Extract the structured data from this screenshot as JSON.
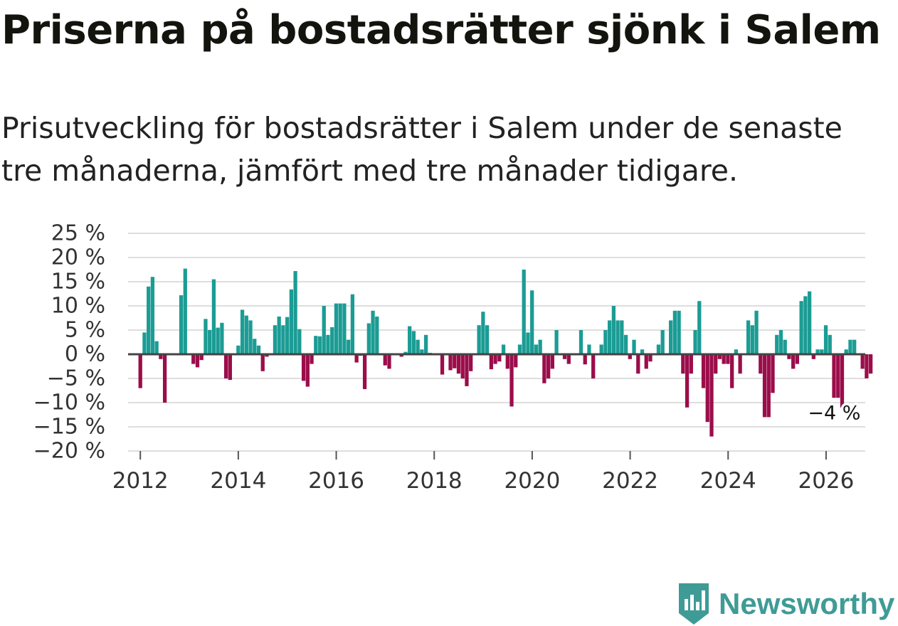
{
  "title": "Priserna på bostadsrätter sjönk i Salem",
  "subtitle": "Prisutveckling för bostadsrätter i Salem under de senaste tre månaderna, jämfört med tre månader tidigare.",
  "brand": {
    "name": "Newsworthy",
    "icon": "newsworthy-logo-icon"
  },
  "colors": {
    "positive": "#1b9c94",
    "negative": "#9b0d4a",
    "grid": "#dedede",
    "zero": "#444444",
    "text": "#333333",
    "brand": "#3f9b96"
  },
  "chart_data": {
    "type": "bar",
    "title": "Priserna på bostadsrätter sjönk i Salem",
    "xlabel": "",
    "ylabel": "",
    "unit": "%",
    "ylim": [
      -20,
      25
    ],
    "yticks": [
      25,
      20,
      15,
      10,
      5,
      0,
      -5,
      -10,
      -15,
      -20
    ],
    "ytick_labels": [
      "25 %",
      "20 %",
      "15 %",
      "10 %",
      "5 %",
      "0 %",
      "−5 %",
      "−10 %",
      "−15 %",
      "−20 %"
    ],
    "xlim": [
      2011.75,
      2026.8
    ],
    "xticks": [
      2012,
      2014,
      2016,
      2018,
      2020,
      2022,
      2024,
      2026
    ],
    "xtick_labels": [
      "2012",
      "2014",
      "2016",
      "2018",
      "2020",
      "2022",
      "2024",
      "2026"
    ],
    "x_start": 2012.0,
    "x_step": 0.0833,
    "values": [
      -7,
      4.5,
      14,
      16,
      2.7,
      -1,
      -10,
      0,
      0,
      0,
      12.2,
      17.7,
      0,
      -2,
      -2.7,
      -1.2,
      7.3,
      5,
      15.5,
      5.5,
      6.5,
      -5,
      -5.3,
      0,
      1.8,
      9.2,
      8,
      7,
      3.2,
      1.8,
      -3.5,
      -0.5,
      0,
      6,
      7.8,
      6,
      7.7,
      13.4,
      17.2,
      5.2,
      -5.5,
      -6.7,
      -2,
      3.8,
      3.7,
      10,
      4,
      5.6,
      10.5,
      10.5,
      10.5,
      3,
      12.4,
      -1.7,
      -0.3,
      -7.2,
      6.4,
      9,
      7.8,
      0,
      -2.3,
      -3,
      0,
      0,
      -0.5,
      0.5,
      5.8,
      4.8,
      3,
      1,
      4,
      0.3,
      0,
      0,
      -4.2,
      0,
      -3.3,
      -2.9,
      -4,
      -5,
      -6.6,
      -3.5,
      0,
      6,
      8.8,
      6,
      -3.1,
      -2,
      -1.5,
      2,
      -3,
      -10.8,
      -2.7,
      2,
      17.5,
      4.5,
      13.2,
      2,
      3,
      -6,
      -5,
      -3,
      5,
      0,
      -1,
      -2,
      0,
      0,
      5,
      -2.1,
      2,
      -5,
      0,
      2,
      5,
      7,
      10,
      7,
      7,
      4,
      -1,
      3,
      -4,
      1,
      -3,
      -1.5,
      0,
      2,
      5,
      0,
      7,
      9,
      9,
      -4,
      -11,
      -4,
      5,
      11,
      -7,
      -14,
      -17,
      -4,
      -1,
      -2,
      -2,
      -7,
      1,
      -4,
      0,
      7,
      6,
      9,
      -4,
      -13,
      -13,
      -8,
      4,
      5,
      3,
      -1,
      -3,
      -2,
      11,
      12,
      13,
      -1,
      1,
      1,
      6,
      4,
      -9,
      -9,
      -11,
      1,
      3,
      3,
      0,
      -3,
      -5,
      -4
    ],
    "annotation": {
      "label": "−4 %",
      "value": -4,
      "x": 2026.08
    }
  }
}
